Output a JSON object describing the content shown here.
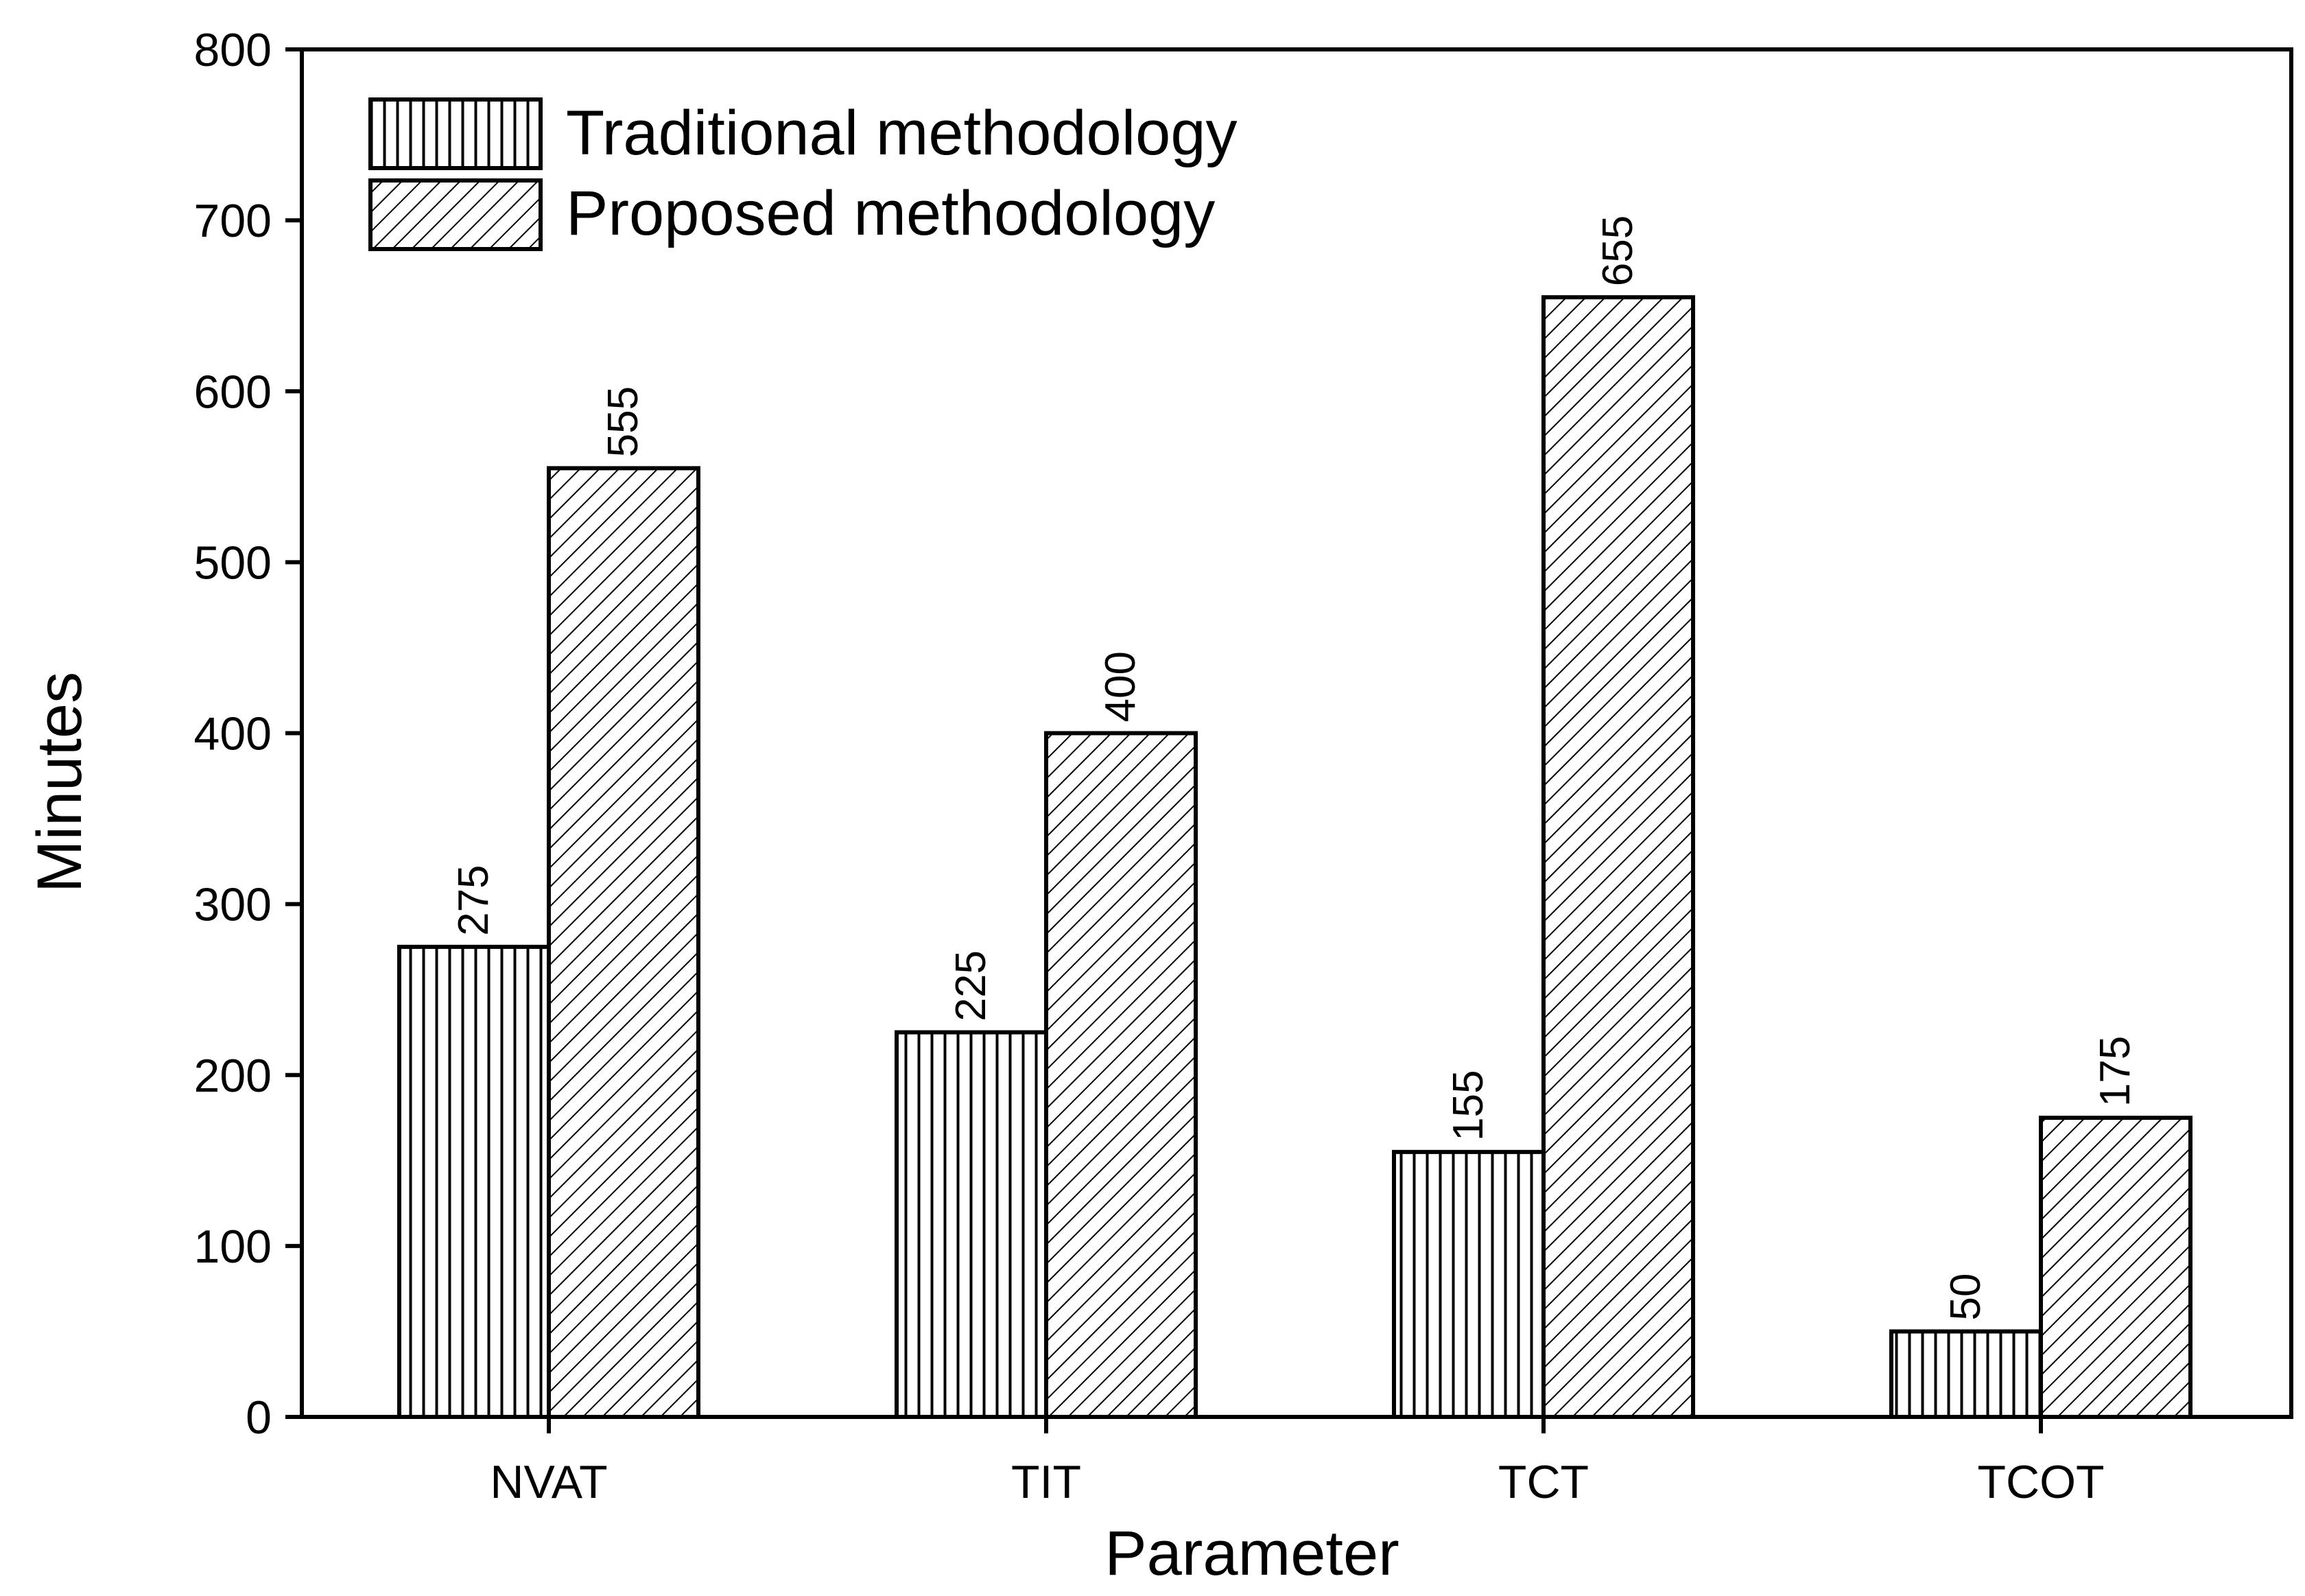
{
  "chart_data": {
    "type": "bar",
    "title": "",
    "xlabel": "Parameter",
    "ylabel": "Minutes",
    "categories": [
      "NVAT",
      "TIT",
      "TCT",
      "TCOT"
    ],
    "series": [
      {
        "name": "Traditional methodology",
        "values": [
          275,
          225,
          155,
          50
        ],
        "pattern": "vertical-lines"
      },
      {
        "name": "Proposed methodology",
        "values": [
          555,
          400,
          655,
          175
        ],
        "pattern": "diagonal-hatch"
      }
    ],
    "ylim": [
      0,
      800
    ],
    "yticks": [
      0,
      100,
      200,
      300,
      400,
      500,
      600,
      700,
      800
    ],
    "data_labels": {
      "Traditional methodology": [
        "275",
        "225",
        "155",
        "50"
      ],
      "Proposed methodology": [
        "555",
        "400",
        "655",
        "175"
      ]
    },
    "legend_position": "top-left",
    "grid": false,
    "colors": {
      "bar_stroke": "#000000",
      "bar_fill": "#ffffff",
      "axis": "#000000"
    }
  }
}
